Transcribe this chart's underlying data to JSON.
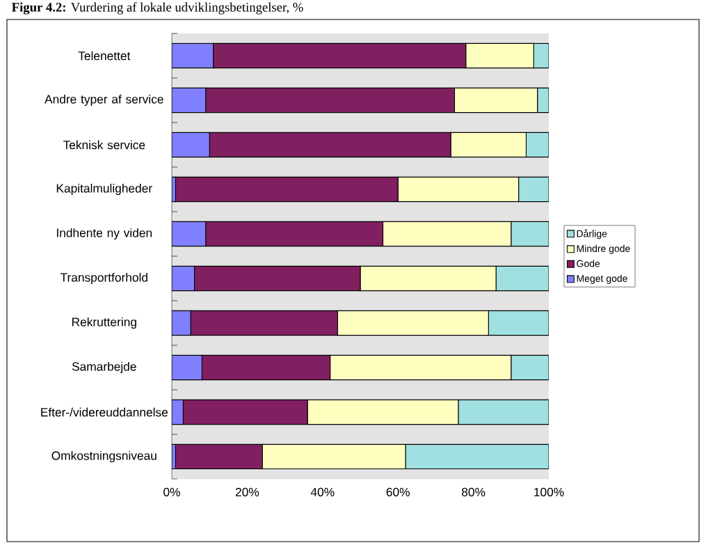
{
  "chart_data": {
    "type": "bar",
    "orientation": "horizontal",
    "stacked": true,
    "title": "**Figur 4.2:** Vurdering af lokale udviklingsbetingelser, %",
    "categories": [
      "Telenettet",
      "Andre typer af service",
      "Teknisk service",
      "Kapitalmuligheder",
      "Indhente ny viden",
      "Transportforhold",
      "Rekruttering",
      "Samarbejde",
      "Efter-/videreuddannelse",
      "Omkostningsniveau"
    ],
    "series": [
      {
        "name": "Meget gode",
        "color": "#8080ff",
        "values": [
          11,
          9,
          10,
          1,
          9,
          6,
          5,
          8,
          3,
          1
        ]
      },
      {
        "name": "Gode",
        "color": "#802060",
        "values": [
          67,
          66,
          64,
          59,
          47,
          44,
          39,
          34,
          33,
          23
        ]
      },
      {
        "name": "Mindre gode",
        "color": "#ffffc0",
        "values": [
          18,
          22,
          20,
          32,
          34,
          36,
          40,
          48,
          40,
          38
        ]
      },
      {
        "name": "Dårlige",
        "color": "#a0e0e0",
        "values": [
          4,
          3,
          6,
          8,
          10,
          14,
          16,
          10,
          24,
          38
        ]
      }
    ],
    "xlim": [
      0,
      100
    ],
    "xticks": [
      {
        "value": 0,
        "label": "0%"
      },
      {
        "value": 20,
        "label": "20%"
      },
      {
        "value": 40,
        "label": "40%"
      },
      {
        "value": 60,
        "label": "60%"
      },
      {
        "value": 80,
        "label": "80%"
      },
      {
        "value": 100,
        "label": "100%"
      }
    ],
    "legend": "right"
  }
}
